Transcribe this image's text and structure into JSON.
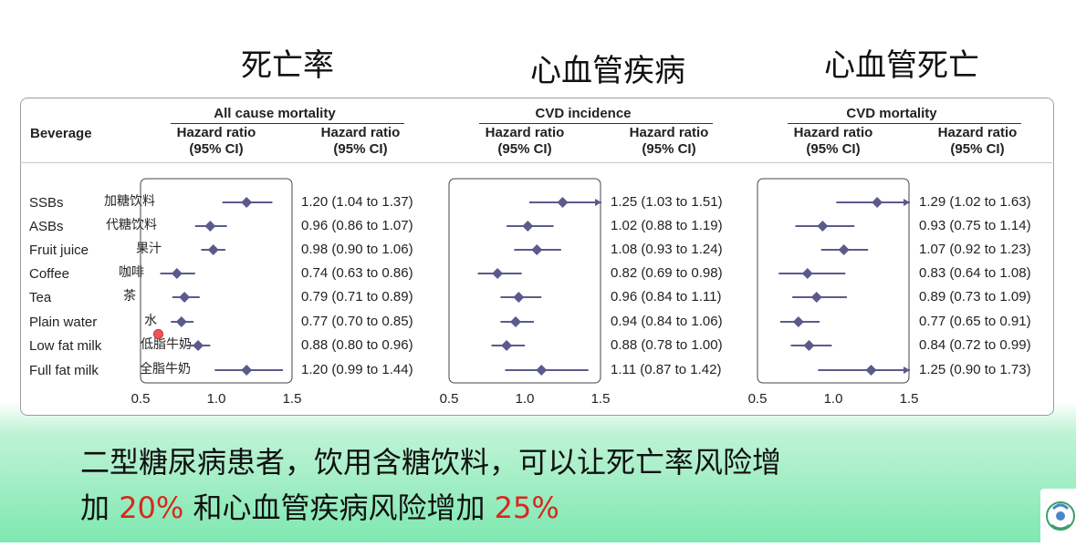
{
  "page_titles": [
    "死亡率",
    "心血管疾病",
    "心血管死亡"
  ],
  "table": {
    "beverage_header": "Beverage",
    "col_header": "Hazard ratio\n(95% CI)",
    "rows": [
      {
        "en": "SSBs",
        "zh": "加糖饮料"
      },
      {
        "en": "ASBs",
        "zh": "代糖饮料"
      },
      {
        "en": "Fruit juice",
        "zh": "果汁"
      },
      {
        "en": "Coffee",
        "zh": "咖啡"
      },
      {
        "en": "Tea",
        "zh": "茶"
      },
      {
        "en": "Plain water",
        "zh": "水"
      },
      {
        "en": "Low fat milk",
        "zh": "低脂牛奶"
      },
      {
        "en": "Full fat milk",
        "zh": "全脂牛奶"
      }
    ]
  },
  "chart_data": [
    {
      "type": "forest",
      "title": "All cause mortality",
      "xlim": [
        0.5,
        1.5
      ],
      "xticks": [
        "0.5",
        "1.0",
        "1.5"
      ],
      "points": [
        {
          "hr": 1.2,
          "lo": 1.04,
          "hi": 1.37,
          "label": "1.20 (1.04 to 1.37)"
        },
        {
          "hr": 0.96,
          "lo": 0.86,
          "hi": 1.07,
          "label": "0.96 (0.86 to 1.07)"
        },
        {
          "hr": 0.98,
          "lo": 0.9,
          "hi": 1.06,
          "label": "0.98 (0.90 to 1.06)"
        },
        {
          "hr": 0.74,
          "lo": 0.63,
          "hi": 0.86,
          "label": "0.74 (0.63 to 0.86)"
        },
        {
          "hr": 0.79,
          "lo": 0.71,
          "hi": 0.89,
          "label": "0.79 (0.71 to 0.89)"
        },
        {
          "hr": 0.77,
          "lo": 0.7,
          "hi": 0.85,
          "label": "0.77 (0.70 to 0.85)"
        },
        {
          "hr": 0.88,
          "lo": 0.8,
          "hi": 0.96,
          "label": "0.88 (0.80 to 0.96)"
        },
        {
          "hr": 1.2,
          "lo": 0.99,
          "hi": 1.44,
          "label": "1.20 (0.99 to 1.44)"
        }
      ]
    },
    {
      "type": "forest",
      "title": "CVD incidence",
      "xlim": [
        0.5,
        1.5
      ],
      "xticks": [
        "0.5",
        "1.0",
        "1.5"
      ],
      "points": [
        {
          "hr": 1.25,
          "lo": 1.03,
          "hi": 1.51,
          "label": "1.25 (1.03 to 1.51)"
        },
        {
          "hr": 1.02,
          "lo": 0.88,
          "hi": 1.19,
          "label": "1.02 (0.88 to 1.19)"
        },
        {
          "hr": 1.08,
          "lo": 0.93,
          "hi": 1.24,
          "label": "1.08 (0.93 to 1.24)"
        },
        {
          "hr": 0.82,
          "lo": 0.69,
          "hi": 0.98,
          "label": "0.82 (0.69 to 0.98)"
        },
        {
          "hr": 0.96,
          "lo": 0.84,
          "hi": 1.11,
          "label": "0.96 (0.84 to 1.11)"
        },
        {
          "hr": 0.94,
          "lo": 0.84,
          "hi": 1.06,
          "label": "0.94 (0.84 to 1.06)"
        },
        {
          "hr": 0.88,
          "lo": 0.78,
          "hi": 1.0,
          "label": "0.88 (0.78 to 1.00)"
        },
        {
          "hr": 1.11,
          "lo": 0.87,
          "hi": 1.42,
          "label": "1.11 (0.87 to 1.42)"
        }
      ]
    },
    {
      "type": "forest",
      "title": "CVD mortality",
      "xlim": [
        0.5,
        1.5
      ],
      "xticks": [
        "0.5",
        "1.0",
        "1.5"
      ],
      "points": [
        {
          "hr": 1.29,
          "lo": 1.02,
          "hi": 1.63,
          "label": "1.29 (1.02 to 1.63)"
        },
        {
          "hr": 0.93,
          "lo": 0.75,
          "hi": 1.14,
          "label": "0.93 (0.75 to 1.14)"
        },
        {
          "hr": 1.07,
          "lo": 0.92,
          "hi": 1.23,
          "label": "1.07 (0.92 to 1.23)"
        },
        {
          "hr": 0.83,
          "lo": 0.64,
          "hi": 1.08,
          "label": "0.83 (0.64 to 1.08)"
        },
        {
          "hr": 0.89,
          "lo": 0.73,
          "hi": 1.09,
          "label": "0.89 (0.73 to 1.09)"
        },
        {
          "hr": 0.77,
          "lo": 0.65,
          "hi": 0.91,
          "label": "0.77 (0.65 to 0.91)"
        },
        {
          "hr": 0.84,
          "lo": 0.72,
          "hi": 0.99,
          "label": "0.84 (0.72 to 0.99)"
        },
        {
          "hr": 1.25,
          "lo": 0.9,
          "hi": 1.73,
          "label": "1.25 (0.90 to 1.73)"
        }
      ]
    }
  ],
  "caption": {
    "line1": "二型糖尿病患者，饮用含糖饮料，可以让死亡率风险增",
    "line2_a": "加 ",
    "line2_b": "20%",
    "line2_c": " 和心血管疾病风险增加 ",
    "line2_d": "25%"
  },
  "colors": {
    "marker": "#5b5a8c",
    "accent_red": "#d6281f",
    "slide_bottom": "#7fe8b0"
  }
}
